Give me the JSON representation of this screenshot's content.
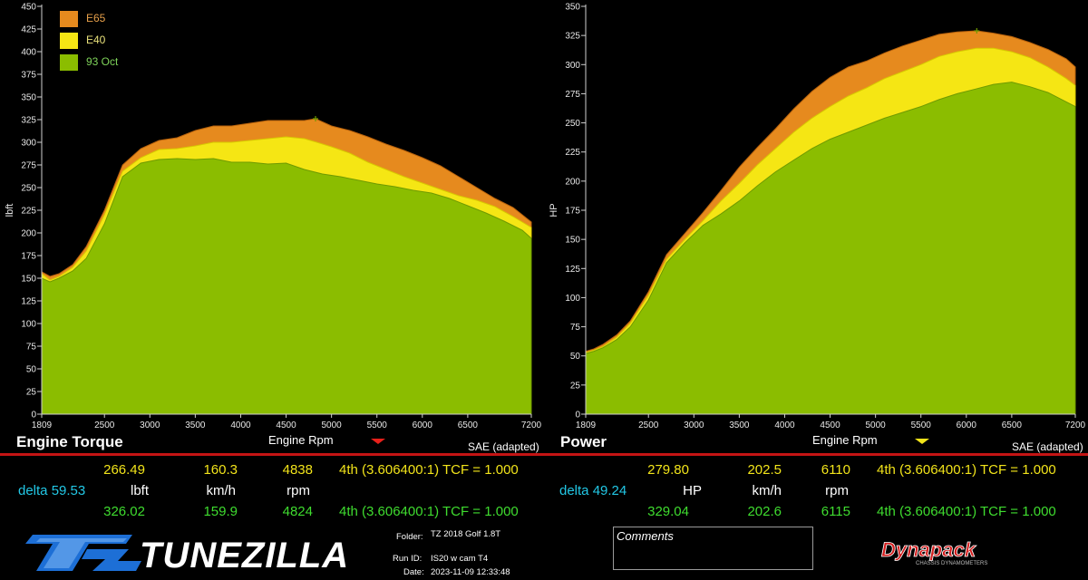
{
  "colors": {
    "e65": "#e68a1e",
    "e40": "#f5e614",
    "oct93": "#8bbd00",
    "accent_red": "#c41414",
    "yellow_text": "#f2e41a",
    "green_text": "#3fdc2f",
    "cyan_text": "#22c8e6"
  },
  "legend": [
    {
      "label": "E65",
      "color": "#e68a1e",
      "text_color": "#e7a04a"
    },
    {
      "label": "E40",
      "color": "#f5e614",
      "text_color": "#e8e07a"
    },
    {
      "label": "93 Oct",
      "color": "#8bbd00",
      "text_color": "#7fd35a"
    }
  ],
  "chart_data": [
    {
      "type": "area",
      "title": "Engine Torque",
      "xlabel": "Engine Rpm",
      "ylabel": "lbft",
      "note": "SAE (adapted)",
      "xlim": [
        1809,
        7200
      ],
      "ylim": [
        0,
        450
      ],
      "x_ticks": [
        1809,
        2500,
        3000,
        3500,
        4000,
        4500,
        5000,
        5500,
        6000,
        6500,
        7200
      ],
      "y_ticks": [
        0,
        25,
        50,
        75,
        100,
        125,
        150,
        175,
        200,
        225,
        250,
        275,
        300,
        325,
        350,
        375,
        400,
        425,
        450
      ],
      "grid": false,
      "legend_position": "top-left",
      "series": [
        {
          "name": "E65",
          "x": [
            1809,
            1900,
            2000,
            2150,
            2300,
            2500,
            2700,
            2900,
            3100,
            3300,
            3500,
            3700,
            3900,
            4100,
            4300,
            4500,
            4700,
            4824,
            5000,
            5200,
            5400,
            5600,
            5800,
            6000,
            6200,
            6400,
            6600,
            6800,
            7000,
            7200
          ],
          "values": [
            157,
            152,
            155,
            165,
            185,
            225,
            275,
            293,
            302,
            305,
            313,
            318,
            318,
            321,
            324,
            324,
            324,
            326,
            318,
            313,
            306,
            298,
            291,
            283,
            274,
            262,
            250,
            238,
            228,
            212
          ]
        },
        {
          "name": "E40",
          "x": [
            1809,
            1900,
            2000,
            2150,
            2300,
            2500,
            2700,
            2900,
            3100,
            3300,
            3500,
            3700,
            3900,
            4100,
            4300,
            4500,
            4700,
            4838,
            5000,
            5200,
            5400,
            5600,
            5800,
            6000,
            6200,
            6400,
            6600,
            6800,
            7000,
            7200
          ],
          "values": [
            155,
            148,
            152,
            162,
            180,
            220,
            268,
            283,
            292,
            293,
            296,
            300,
            300,
            302,
            304,
            306,
            304,
            300,
            295,
            288,
            278,
            270,
            262,
            255,
            248,
            241,
            236,
            229,
            218,
            206
          ]
        },
        {
          "name": "93 Oct",
          "x": [
            1809,
            1900,
            2000,
            2150,
            2300,
            2500,
            2700,
            2900,
            3100,
            3300,
            3500,
            3700,
            3900,
            4100,
            4300,
            4500,
            4700,
            4900,
            5100,
            5300,
            5500,
            5700,
            5900,
            6100,
            6300,
            6500,
            6700,
            6900,
            7100,
            7200
          ],
          "values": [
            150,
            146,
            150,
            158,
            172,
            210,
            262,
            277,
            281,
            282,
            281,
            282,
            278,
            278,
            276,
            277,
            270,
            265,
            262,
            258,
            254,
            251,
            247,
            244,
            238,
            230,
            222,
            213,
            203,
            194
          ]
        }
      ]
    },
    {
      "type": "area",
      "title": "Power",
      "xlabel": "Engine Rpm",
      "ylabel": "HP",
      "note": "SAE (adapted)",
      "xlim": [
        1809,
        7200
      ],
      "ylim": [
        0,
        350
      ],
      "x_ticks": [
        1809,
        2500,
        3000,
        3500,
        4000,
        4500,
        5000,
        5500,
        6000,
        6500,
        7200
      ],
      "y_ticks": [
        0,
        25,
        50,
        75,
        100,
        125,
        150,
        175,
        200,
        225,
        250,
        275,
        300,
        325,
        350
      ],
      "grid": false,
      "series": [
        {
          "name": "E65",
          "x": [
            1809,
            1900,
            2000,
            2150,
            2300,
            2500,
            2700,
            2900,
            3100,
            3300,
            3500,
            3700,
            3900,
            4100,
            4300,
            4500,
            4700,
            4900,
            5100,
            5300,
            5500,
            5700,
            5900,
            6115,
            6300,
            6500,
            6700,
            6900,
            7100,
            7200
          ],
          "values": [
            54,
            56,
            60,
            68,
            80,
            105,
            137,
            155,
            173,
            192,
            212,
            229,
            245,
            262,
            277,
            289,
            298,
            303,
            310,
            316,
            321,
            326,
            328,
            329,
            327,
            324,
            319,
            313,
            305,
            298
          ]
        },
        {
          "name": "E40",
          "x": [
            1809,
            1900,
            2000,
            2150,
            2300,
            2500,
            2700,
            2900,
            3100,
            3300,
            3500,
            3700,
            3900,
            4100,
            4300,
            4500,
            4700,
            4900,
            5100,
            5300,
            5500,
            5700,
            5900,
            6110,
            6300,
            6500,
            6700,
            6900,
            7100,
            7200
          ],
          "values": [
            53,
            55,
            58,
            66,
            78,
            102,
            133,
            150,
            166,
            183,
            198,
            214,
            228,
            242,
            254,
            264,
            273,
            280,
            288,
            294,
            300,
            307,
            311,
            314,
            314,
            311,
            306,
            298,
            288,
            282
          ]
        },
        {
          "name": "93 Oct",
          "x": [
            1809,
            1900,
            2000,
            2150,
            2300,
            2500,
            2700,
            2900,
            3100,
            3300,
            3500,
            3700,
            3900,
            4100,
            4300,
            4500,
            4700,
            4900,
            5100,
            5300,
            5500,
            5700,
            5900,
            6100,
            6300,
            6500,
            6700,
            6900,
            7100,
            7200
          ],
          "values": [
            52,
            54,
            57,
            64,
            75,
            98,
            130,
            147,
            162,
            172,
            183,
            196,
            208,
            218,
            228,
            236,
            242,
            248,
            254,
            259,
            264,
            270,
            275,
            279,
            283,
            285,
            281,
            276,
            268,
            264
          ]
        }
      ]
    }
  ],
  "torque_panel": {
    "title": "Engine Torque",
    "xlabel": "Engine Rpm",
    "note": "SAE (adapted)",
    "row1": {
      "value": "266.49",
      "speed": "160.3",
      "rpm": "4838",
      "gear": "4th (3.606400:1) TCF = 1.000"
    },
    "row2": {
      "delta": "delta 59.53",
      "unit": "lbft",
      "speed_unit": "km/h",
      "rpm_unit": "rpm"
    },
    "row3": {
      "value": "326.02",
      "speed": "159.9",
      "rpm": "4824",
      "gear": "4th (3.606400:1) TCF = 1.000"
    }
  },
  "power_panel": {
    "title": "Power",
    "xlabel": "Engine Rpm",
    "note": "SAE (adapted)",
    "row1": {
      "value": "279.80",
      "speed": "202.5",
      "rpm": "6110",
      "gear": "4th (3.606400:1) TCF = 1.000"
    },
    "row2": {
      "delta": "delta 49.24",
      "unit": "HP",
      "speed_unit": "km/h",
      "rpm_unit": "rpm"
    },
    "row3": {
      "value": "329.04",
      "speed": "202.6",
      "rpm": "6115",
      "gear": "4th (3.606400:1) TCF = 1.000"
    }
  },
  "footer": {
    "brand": "TUNEZILLA",
    "folder_label": "Folder:",
    "folder": "TZ 2018 Golf 1.8T",
    "runid_label": "Run ID:",
    "runid": "IS20 w cam T4",
    "date_label": "Date:",
    "date": "2023-11-09 12:33:48",
    "comments_label": "Comments",
    "dyna_logo": "Dynapack",
    "dyna_sub": "CHASSIS DYNAMOMETERS"
  }
}
